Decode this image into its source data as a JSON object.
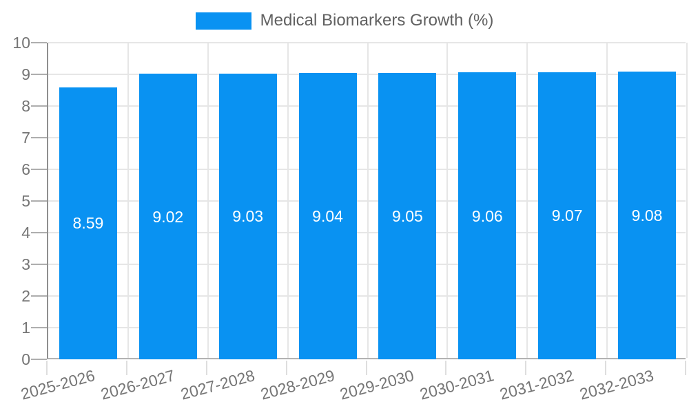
{
  "chart_data": {
    "type": "bar",
    "title": "",
    "legend": {
      "label": "Medical Biomarkers Growth (%)",
      "position": "top"
    },
    "categories": [
      "2025-2026",
      "2026-2027",
      "2027-2028",
      "2028-2029",
      "2029-2030",
      "2030-2031",
      "2031-2032",
      "2032-2033"
    ],
    "series": [
      {
        "name": "Medical Biomarkers Growth (%)",
        "values": [
          8.59,
          9.02,
          9.03,
          9.04,
          9.05,
          9.06,
          9.07,
          9.08
        ]
      }
    ],
    "value_labels": [
      "8.59",
      "9.02",
      "9.03",
      "9.04",
      "9.05",
      "9.06",
      "9.07",
      "9.08"
    ],
    "xlabel": "",
    "ylabel": "",
    "ylim": [
      0,
      10
    ],
    "y_ticks": [
      0,
      1,
      2,
      3,
      4,
      5,
      6,
      7,
      8,
      9,
      10
    ],
    "grid": true,
    "colors": {
      "bar": "#0992f2",
      "grid": "#e6e6e6",
      "y_axis_line": "#8f8f8f",
      "x_axis_line": "#b2b2b2",
      "tick_label": "#757575",
      "legend_text": "#616161",
      "value_label": "#ffffff"
    }
  }
}
